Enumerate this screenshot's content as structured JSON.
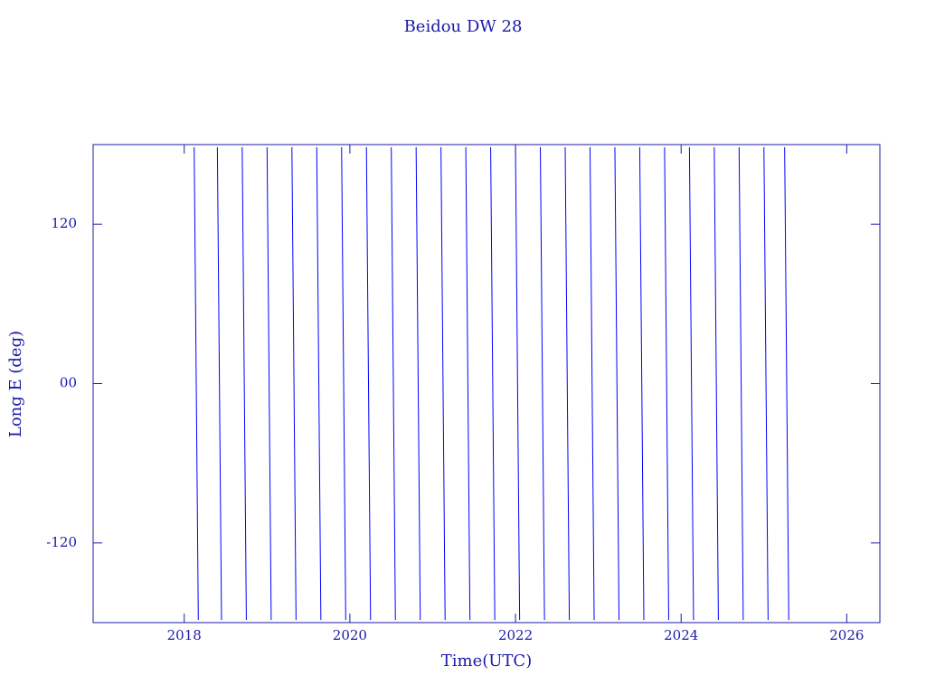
{
  "chart_data": {
    "type": "line",
    "title": "Beidou DW 28",
    "x_label": "Time(UTC)",
    "y_label": "Long E (deg)",
    "xlim": [
      2016.9,
      2026.4
    ],
    "xticks": [
      2018,
      2020,
      2022,
      2024,
      2026
    ],
    "ylim": [
      -180,
      180
    ],
    "yticks": [
      120,
      {
        "value": 0,
        "label": "00"
      },
      -120
    ],
    "axis_color": "#1a1aa8",
    "series": [
      {
        "color": "#0000ff",
        "x": [
          2018.12,
          2018.17,
          2018.17,
          2018.4,
          2018.45,
          2018.45,
          2018.7,
          2018.75,
          2018.75,
          2019.0,
          2019.05,
          2019.05,
          2019.3,
          2019.35,
          2019.35,
          2019.6,
          2019.65,
          2019.65,
          2019.9,
          2019.95,
          2019.95,
          2020.2,
          2020.25,
          2020.25,
          2020.5,
          2020.55,
          2020.55,
          2020.8,
          2020.85,
          2020.85,
          2021.1,
          2021.15,
          2021.15,
          2021.4,
          2021.45,
          2021.45,
          2021.7,
          2021.75,
          2021.75,
          2022.0,
          2022.05,
          2022.05,
          2022.3,
          2022.35,
          2022.35,
          2022.6,
          2022.65,
          2022.65,
          2022.9,
          2022.95,
          2022.95,
          2023.2,
          2023.25,
          2023.25,
          2023.5,
          2023.55,
          2023.55,
          2023.8,
          2023.85,
          2023.85,
          2024.1,
          2024.15,
          2024.15,
          2024.4,
          2024.45,
          2024.45,
          2024.7,
          2024.75,
          2024.75,
          2025.0,
          2025.05,
          2025.05,
          2025.25,
          2025.3
        ],
        "values": [
          178,
          -178,
          null,
          178,
          -178,
          null,
          178,
          -178,
          null,
          178,
          -178,
          null,
          178,
          -178,
          null,
          178,
          -178,
          null,
          178,
          -178,
          null,
          178,
          -178,
          null,
          178,
          -178,
          null,
          178,
          -178,
          null,
          178,
          -178,
          null,
          178,
          -178,
          null,
          178,
          -178,
          null,
          178,
          -178,
          null,
          178,
          -178,
          null,
          178,
          -178,
          null,
          178,
          -178,
          null,
          178,
          -178,
          null,
          178,
          -178,
          null,
          178,
          -178,
          null,
          178,
          -178,
          null,
          178,
          -178,
          null,
          178,
          -178,
          null,
          178,
          -178,
          null,
          178,
          -178
        ]
      }
    ]
  }
}
